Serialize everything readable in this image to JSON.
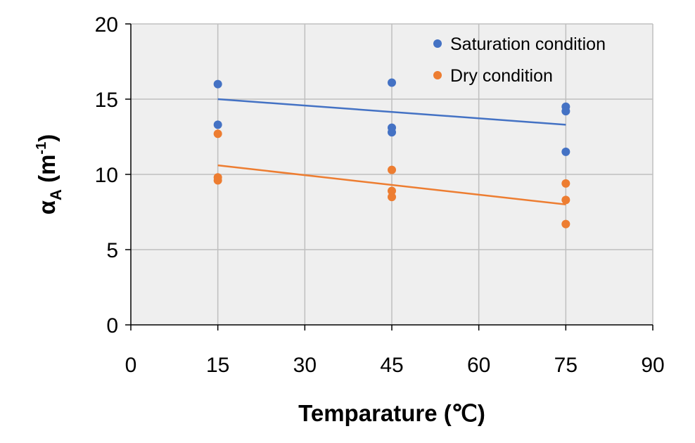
{
  "chart_data": {
    "type": "scatter",
    "xlabel": "Temparature (℃)",
    "ylabel": {
      "main": "α",
      "sub": "A",
      "unit_open": " (m",
      "unit_sup": "-1",
      "unit_close": ")"
    },
    "xlim": [
      0,
      90
    ],
    "ylim": [
      0,
      20
    ],
    "x_ticks": [
      0,
      15,
      30,
      45,
      60,
      75,
      90
    ],
    "y_ticks": [
      0,
      5,
      10,
      15,
      20
    ],
    "grid": true,
    "legend_position": "top-right",
    "series": [
      {
        "name": "Saturation condition",
        "color": "#4472C4",
        "points": [
          [
            15,
            16.0
          ],
          [
            15,
            13.3
          ],
          [
            45,
            16.1
          ],
          [
            45,
            13.1
          ],
          [
            45,
            12.8
          ],
          [
            75,
            14.5
          ],
          [
            75,
            14.2
          ],
          [
            75,
            11.5
          ]
        ],
        "trendline": [
          [
            15,
            15.0
          ],
          [
            75,
            13.3
          ]
        ]
      },
      {
        "name": "Dry condition",
        "color": "#ED7D31",
        "points": [
          [
            15,
            12.7
          ],
          [
            15,
            9.8
          ],
          [
            15,
            9.6
          ],
          [
            45,
            10.3
          ],
          [
            45,
            8.9
          ],
          [
            45,
            8.5
          ],
          [
            75,
            9.4
          ],
          [
            75,
            8.3
          ],
          [
            75,
            6.7
          ]
        ],
        "trendline": [
          [
            15,
            10.6
          ],
          [
            75,
            8.0
          ]
        ]
      }
    ]
  }
}
